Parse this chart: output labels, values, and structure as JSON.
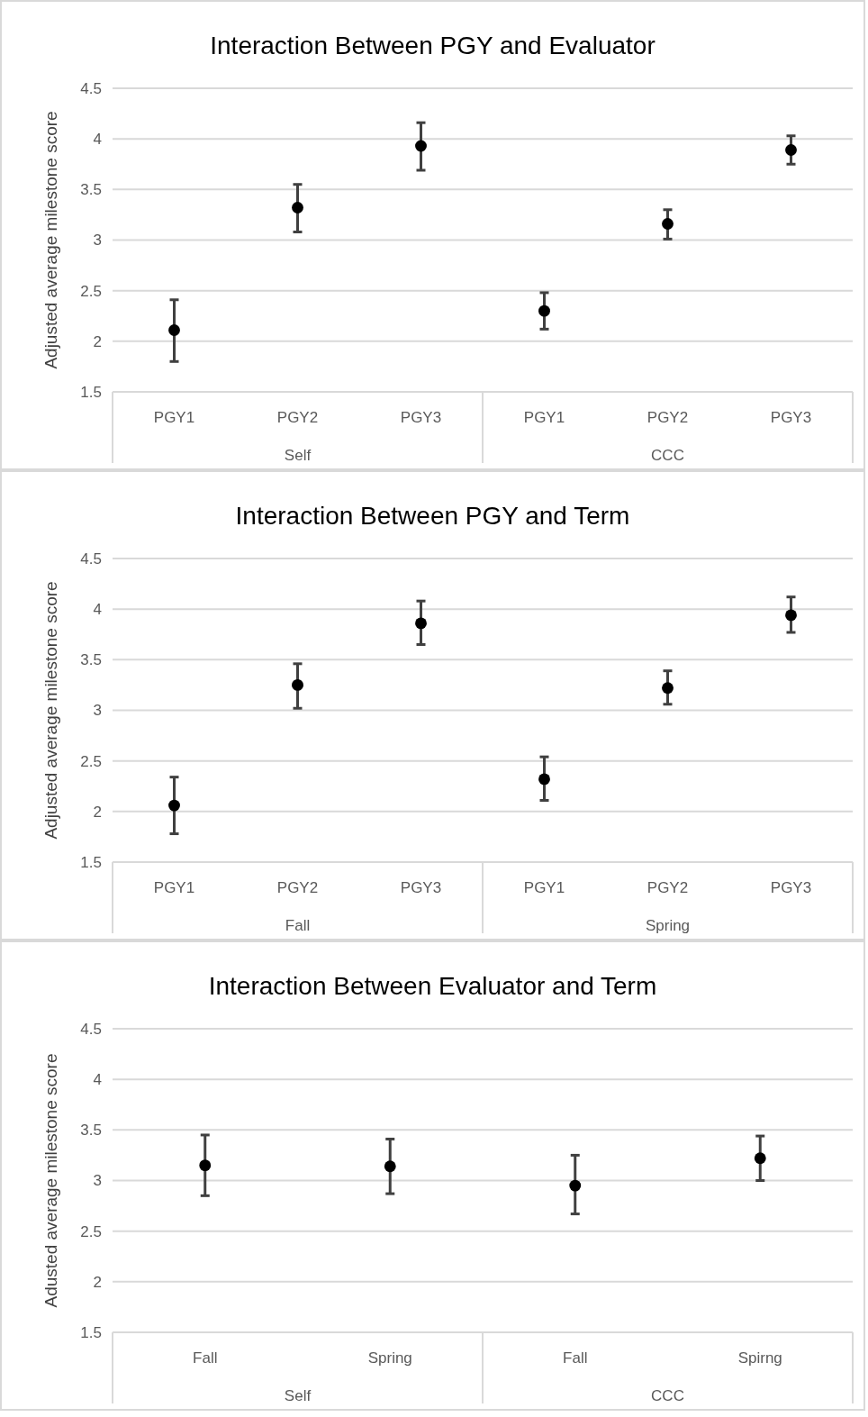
{
  "chart_data": [
    {
      "type": "scatter",
      "title": "Interaction Between PGY and Evaluator",
      "ylabel": "Adjusted average milestone score",
      "categories": [
        "PGY1",
        "PGY2",
        "PGY3",
        "PGY1",
        "PGY2",
        "PGY3"
      ],
      "annotations": [
        "Self",
        "CCC"
      ],
      "series": [
        {
          "color": "#000000",
          "values": [
            2.11,
            3.32,
            3.93,
            2.3,
            3.16,
            3.89
          ],
          "errors": [
            [
              1.8,
              2.41
            ],
            [
              3.08,
              3.55
            ],
            [
              3.69,
              4.16
            ],
            [
              2.12,
              2.48
            ],
            [
              3.01,
              3.3
            ],
            [
              3.75,
              4.03
            ]
          ]
        }
      ],
      "ylim": [
        1.5,
        4.5
      ],
      "yticks": [
        1.5,
        2,
        2.5,
        3,
        3.5,
        4,
        4.5
      ],
      "grid": "y",
      "marker": "circle"
    },
    {
      "type": "scatter",
      "title": "Interaction Between PGY and Term",
      "ylabel": "Adjusted average milestone score",
      "categories": [
        "PGY1",
        "PGY2",
        "PGY3",
        "PGY1",
        "PGY2",
        "PGY3"
      ],
      "annotations": [
        "Fall",
        "Spring"
      ],
      "series": [
        {
          "color": "#000000",
          "values": [
            2.06,
            3.25,
            3.86,
            2.32,
            3.22,
            3.94
          ],
          "errors": [
            [
              1.78,
              2.34
            ],
            [
              3.02,
              3.46
            ],
            [
              3.65,
              4.08
            ],
            [
              2.11,
              2.54
            ],
            [
              3.06,
              3.39
            ],
            [
              3.77,
              4.12
            ]
          ]
        }
      ],
      "ylim": [
        1.5,
        4.5
      ],
      "yticks": [
        1.5,
        2,
        2.5,
        3,
        3.5,
        4,
        4.5
      ],
      "grid": "y",
      "marker": "circle"
    },
    {
      "type": "scatter",
      "title": "Interaction Between Evaluator and Term",
      "ylabel": "Adusted average milestone score",
      "categories": [
        "Fall",
        "Spring",
        "Fall",
        "Spirng"
      ],
      "annotations": [
        "Self",
        "CCC"
      ],
      "series": [
        {
          "color": "#000000",
          "values": [
            3.15,
            3.14,
            2.95,
            3.22
          ],
          "errors": [
            [
              2.85,
              3.45
            ],
            [
              2.87,
              3.41
            ],
            [
              2.67,
              3.25
            ],
            [
              3.0,
              3.44
            ]
          ]
        }
      ],
      "ylim": [
        1.5,
        4.5
      ],
      "yticks": [
        1.5,
        2,
        2.5,
        3,
        3.5,
        4,
        4.5
      ],
      "grid": "y",
      "marker": "circle"
    }
  ]
}
